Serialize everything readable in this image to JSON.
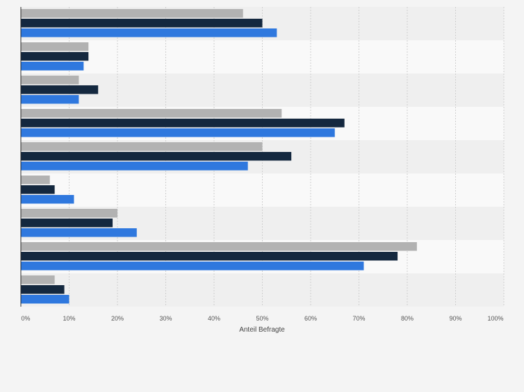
{
  "chart_data": {
    "type": "bar",
    "orientation": "horizontal",
    "title": "",
    "xlabel": "Anteil Befragte",
    "ylabel": "",
    "xlim": [
      0,
      100
    ],
    "x_ticks": [
      0,
      10,
      20,
      30,
      40,
      50,
      60,
      70,
      80,
      90,
      100
    ],
    "x_tick_labels": [
      "0%",
      "10%",
      "20%",
      "30%",
      "40%",
      "50%",
      "60%",
      "70%",
      "80%",
      "90%",
      "100%"
    ],
    "grid": true,
    "legend": "none",
    "categories": [
      "",
      "",
      "",
      "",
      "",
      "",
      "",
      "",
      ""
    ],
    "series": [
      {
        "color": "#b2b2b2",
        "values": [
          46,
          14,
          12,
          54,
          50,
          6,
          20,
          82,
          7
        ]
      },
      {
        "color": "#14283f",
        "values": [
          50,
          14,
          16,
          67,
          56,
          7,
          19,
          78,
          9
        ]
      },
      {
        "color": "#2f78de",
        "values": [
          53,
          13,
          12,
          65,
          47,
          11,
          24,
          71,
          10
        ]
      }
    ]
  },
  "colors": {
    "background": "#f4f4f4",
    "band_dark": "#efefef",
    "band_light": "#f9f9f9",
    "gridline": "#cfcfcf",
    "axis": "#2b2b2b"
  }
}
